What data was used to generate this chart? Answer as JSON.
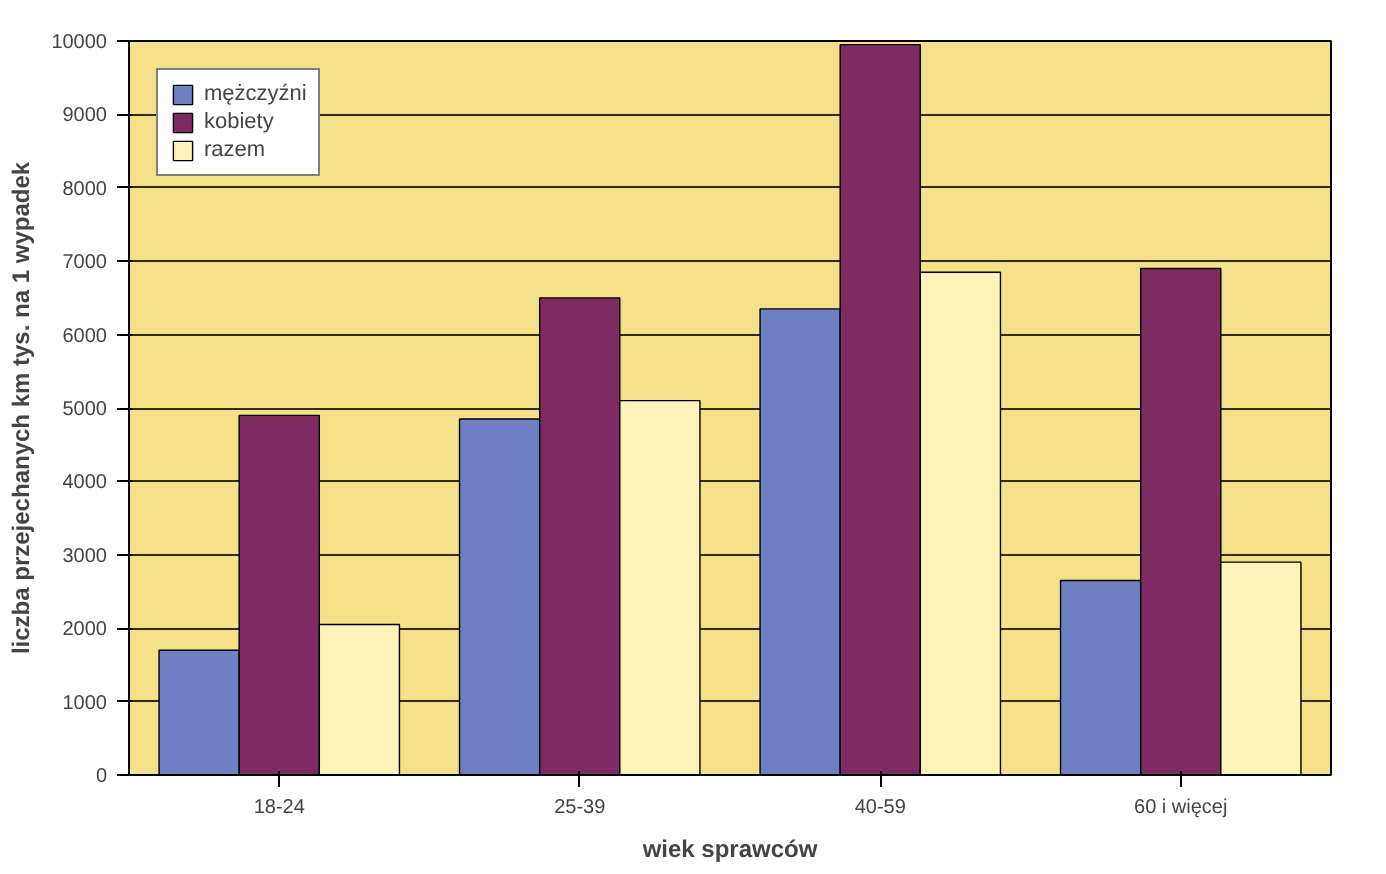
{
  "chart_data": {
    "type": "bar",
    "xlabel": "wiek sprawców",
    "ylabel": "liczba przejechanych km tys. na 1 wypadek",
    "categories": [
      "18-24",
      "25-39",
      "40-59",
      "60 i więcej"
    ],
    "series": [
      {
        "name": "mężczyźni",
        "color": "#6f7fc4",
        "values": [
          1700,
          4850,
          6350,
          2650
        ]
      },
      {
        "name": "kobiety",
        "color": "#7f2b63",
        "values": [
          4900,
          6500,
          9950,
          6900
        ]
      },
      {
        "name": "razem",
        "color": "#fdf3b8",
        "values": [
          2050,
          5100,
          6850,
          2900
        ]
      }
    ],
    "ylim": [
      0,
      10000
    ],
    "yticks": [
      0,
      1000,
      2000,
      3000,
      4000,
      5000,
      6000,
      7000,
      8000,
      9000,
      10000
    ],
    "grid": "y",
    "legend": "top left"
  }
}
